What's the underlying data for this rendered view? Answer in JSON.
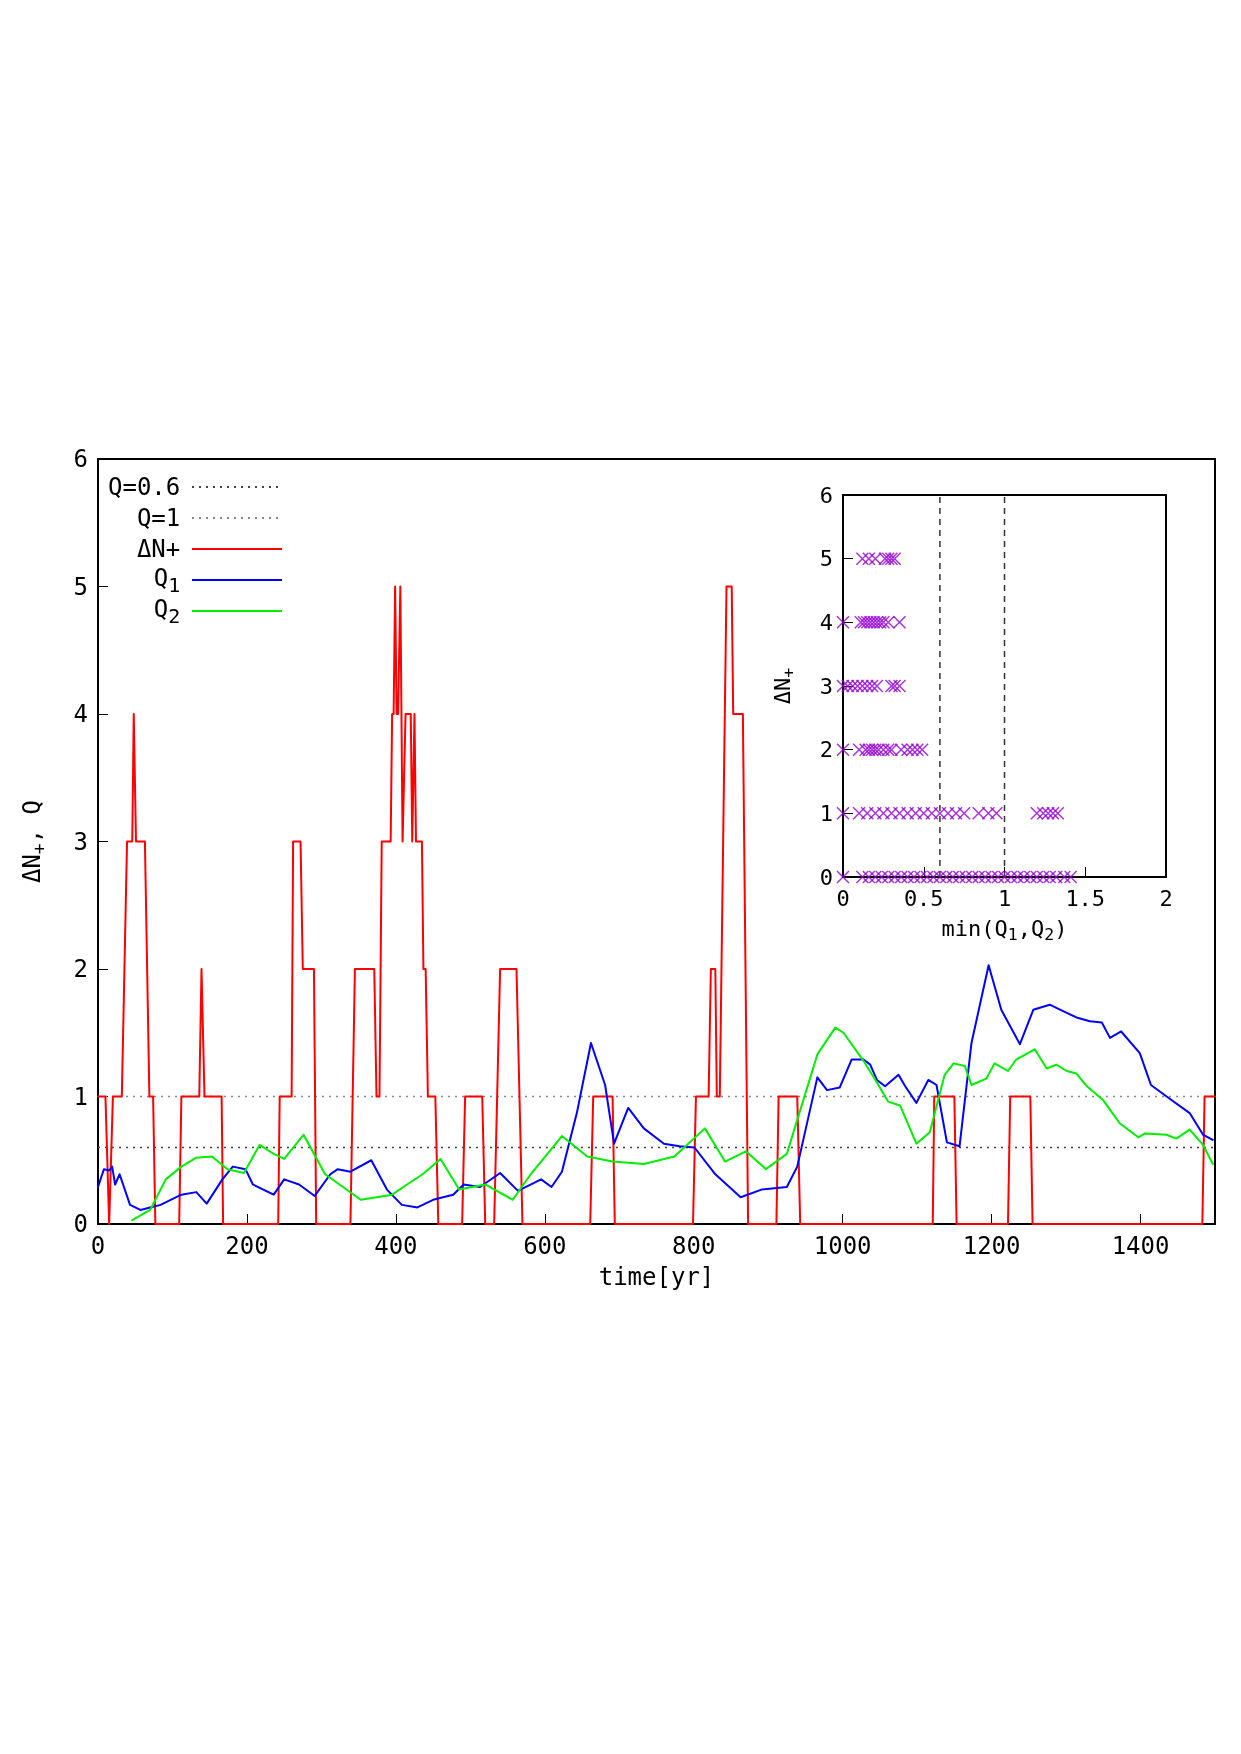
{
  "chart_data": [
    {
      "type": "line",
      "xlabel": "time[yr]",
      "ylabel": "ΔN$_{+}$, Q",
      "xlim": [
        0,
        1500
      ],
      "xticks": [
        0,
        200,
        400,
        600,
        800,
        1000,
        1200,
        1400
      ],
      "ylim": [
        0,
        6
      ],
      "yticks": [
        0,
        1,
        2,
        3,
        4,
        5,
        6
      ],
      "legend": "top left",
      "ref_lines": [
        {
          "axis": "y",
          "value": 0.6,
          "label": "Q=0.6",
          "color": "#444444",
          "line_style": "dotted"
        },
        {
          "axis": "y",
          "value": 1,
          "label": "Q=1",
          "color": "#888888",
          "line_style": "dotted"
        }
      ],
      "series": [
        {
          "name": "ΔN+",
          "color": "#ff0000",
          "x": [
            0,
            10,
            15,
            20,
            32,
            39,
            46,
            48,
            51,
            63,
            69,
            74,
            77,
            109,
            112,
            136,
            139,
            143,
            166,
            168,
            242,
            244,
            260,
            262,
            272,
            275,
            290,
            293,
            339,
            345,
            371,
            374,
            378,
            381,
            393,
            395,
            397,
            399,
            401,
            403,
            406,
            409,
            413,
            420,
            422,
            425,
            427,
            435,
            437,
            440,
            443,
            453,
            457,
            489,
            493,
            516,
            520,
            532,
            536,
            540,
            562,
            566,
            570,
            661,
            665,
            691,
            694,
            799,
            803,
            820,
            823,
            829,
            831,
            835,
            844,
            851,
            853,
            866,
            873,
            911,
            914,
            939,
            943,
            1121,
            1123,
            1150,
            1153,
            1222,
            1225,
            1252,
            1255,
            1483,
            1486,
            1500
          ],
          "values": [
            1,
            1,
            0,
            1,
            1,
            3,
            3,
            4,
            3,
            3,
            1,
            1,
            0,
            0,
            1,
            1,
            2,
            1,
            1,
            0,
            0,
            1,
            1,
            3,
            3,
            2,
            2,
            0,
            0,
            2,
            2,
            1,
            1,
            3,
            3,
            4,
            4,
            5,
            4,
            4,
            5,
            3,
            4,
            4,
            3,
            4,
            3,
            3,
            2,
            2,
            1,
            1,
            0,
            0,
            1,
            1,
            0,
            0,
            1,
            2,
            2,
            1,
            0,
            0,
            1,
            1,
            0,
            0,
            1,
            1,
            2,
            2,
            1,
            1,
            5,
            5,
            4,
            4,
            0,
            0,
            1,
            1,
            0,
            0,
            1,
            1,
            0,
            0,
            1,
            1,
            0,
            0,
            1,
            1
          ]
        },
        {
          "name": "Q$_{1}$",
          "color": "#0000ff",
          "x": [
            0,
            8,
            15,
            19,
            23,
            29,
            43,
            57,
            70,
            84,
            112,
            132,
            146,
            167,
            181,
            198,
            208,
            236,
            250,
            270,
            291,
            312,
            322,
            339,
            367,
            388,
            408,
            429,
            450,
            477,
            491,
            513,
            540,
            564,
            595,
            609,
            623,
            643,
            662,
            681,
            693,
            712,
            733,
            760,
            781,
            801,
            829,
            863,
            891,
            925,
            939,
            966,
            979,
            996,
            1012,
            1028,
            1037,
            1046,
            1057,
            1075,
            1084,
            1099,
            1115,
            1126,
            1140,
            1157,
            1173,
            1196,
            1213,
            1238,
            1256,
            1278,
            1296,
            1314,
            1332,
            1348,
            1359,
            1374,
            1399,
            1414,
            1435,
            1466,
            1484,
            1497
          ],
          "values": [
            0.29,
            0.43,
            0.42,
            0.45,
            0.31,
            0.39,
            0.15,
            0.11,
            0.13,
            0.15,
            0.23,
            0.25,
            0.16,
            0.35,
            0.45,
            0.43,
            0.31,
            0.23,
            0.35,
            0.31,
            0.22,
            0.39,
            0.43,
            0.41,
            0.5,
            0.27,
            0.15,
            0.13,
            0.19,
            0.23,
            0.31,
            0.29,
            0.4,
            0.26,
            0.35,
            0.29,
            0.41,
            0.87,
            1.42,
            1.09,
            0.63,
            0.91,
            0.75,
            0.63,
            0.61,
            0.6,
            0.39,
            0.21,
            0.27,
            0.29,
            0.45,
            1.15,
            1.05,
            1.07,
            1.29,
            1.29,
            1.25,
            1.13,
            1.08,
            1.17,
            1.08,
            0.95,
            1.13,
            1.09,
            0.64,
            0.61,
            1.42,
            2.03,
            1.68,
            1.41,
            1.68,
            1.72,
            1.67,
            1.62,
            1.59,
            1.58,
            1.46,
            1.51,
            1.34,
            1.09,
            1,
            0.87,
            0.7,
            0.66
          ]
        },
        {
          "name": "Q$_{2}$",
          "color": "#00ee00",
          "x": [
            46,
            70,
            91,
            112,
            132,
            153,
            174,
            196,
            217,
            236,
            250,
            276,
            305,
            353,
            395,
            415,
            436,
            460,
            485,
            520,
            557,
            581,
            623,
            657,
            691,
            733,
            774,
            815,
            842,
            870,
            897,
            925,
            966,
            990,
            1001,
            1028,
            1046,
            1061,
            1077,
            1099,
            1117,
            1137,
            1149,
            1164,
            1173,
            1193,
            1204,
            1222,
            1233,
            1258,
            1274,
            1287,
            1301,
            1314,
            1328,
            1350,
            1372,
            1397,
            1406,
            1435,
            1448,
            1466,
            1484,
            1497
          ],
          "values": [
            0.03,
            0.11,
            0.35,
            0.45,
            0.52,
            0.53,
            0.43,
            0.4,
            0.62,
            0.55,
            0.51,
            0.7,
            0.39,
            0.19,
            0.23,
            0.31,
            0.39,
            0.51,
            0.27,
            0.31,
            0.19,
            0.39,
            0.69,
            0.53,
            0.49,
            0.47,
            0.53,
            0.75,
            0.49,
            0.57,
            0.43,
            0.55,
            1.33,
            1.54,
            1.5,
            1.28,
            1.11,
            0.96,
            0.93,
            0.63,
            0.72,
            1.17,
            1.26,
            1.24,
            1.09,
            1.14,
            1.26,
            1.2,
            1.29,
            1.37,
            1.22,
            1.25,
            1.2,
            1.18,
            1.08,
            0.97,
            0.79,
            0.68,
            0.71,
            0.7,
            0.67,
            0.74,
            0.62,
            0.47
          ]
        }
      ]
    },
    {
      "type": "scatter",
      "xlabel": "min(Q$_{1}$,Q$_{2}$)",
      "ylabel": "ΔN$_{+}$",
      "xlim": [
        0,
        2
      ],
      "xticks": [
        0,
        0.5,
        1,
        1.5,
        2
      ],
      "ylim": [
        0,
        6
      ],
      "yticks": [
        0,
        1,
        2,
        3,
        4,
        5,
        6
      ],
      "marker": "cross",
      "ref_lines": [
        {
          "axis": "x",
          "value": 0.6,
          "color": "#333333",
          "line_style": "dashed"
        },
        {
          "axis": "x",
          "value": 1,
          "color": "#333333",
          "line_style": "dashed"
        }
      ],
      "series": [
        {
          "color": "#9400d3",
          "x": [
            0,
            0.12,
            0.16,
            0.2,
            0.24,
            0.28,
            0.32,
            0.36,
            0.4,
            0.44,
            0.48,
            0.52,
            0.56,
            0.6,
            0.64,
            0.68,
            0.72,
            0.76,
            0.8,
            0.84,
            0.88,
            0.92,
            0.96,
            1,
            1.04,
            1.08,
            1.12,
            1.16,
            1.2,
            1.24,
            1.28,
            1.32,
            1.37,
            1.41,
            0,
            0.1,
            0.15,
            0.2,
            0.25,
            0.3,
            0.35,
            0.4,
            0.45,
            0.5,
            0.55,
            0.6,
            0.65,
            0.7,
            0.75,
            0.84,
            0.9,
            0.95,
            1.2,
            1.24,
            1.27,
            1.3,
            1.33,
            0,
            0.1,
            0.14,
            0.16,
            0.18,
            0.2,
            0.22,
            0.25,
            0.28,
            0.3,
            0.36,
            0.4,
            0.43,
            0.46,
            0.49,
            0,
            0.03,
            0.06,
            0.09,
            0.12,
            0.15,
            0.18,
            0.21,
            0.3,
            0.32,
            0.35,
            0,
            0.11,
            0.13,
            0.15,
            0.17,
            0.19,
            0.21,
            0.23,
            0.25,
            0.28,
            0.35,
            0.12,
            0.16,
            0.2,
            0.26,
            0.28,
            0.3,
            0.32
          ],
          "values": [
            0,
            0,
            0,
            0,
            0,
            0,
            0,
            0,
            0,
            0,
            0,
            0,
            0,
            0,
            0,
            0,
            0,
            0,
            0,
            0,
            0,
            0,
            0,
            0,
            0,
            0,
            0,
            0,
            0,
            0,
            0,
            0,
            0,
            0,
            1,
            1,
            1,
            1,
            1,
            1,
            1,
            1,
            1,
            1,
            1,
            1,
            1,
            1,
            1,
            1,
            1,
            1,
            1,
            1,
            1,
            1,
            1,
            2,
            2,
            2,
            2,
            2,
            2,
            2,
            2,
            2,
            2,
            2,
            2,
            2,
            2,
            2,
            3,
            3,
            3,
            3,
            3,
            3,
            3,
            3,
            3,
            3,
            3,
            4,
            4,
            4,
            4,
            4,
            4,
            4,
            4,
            4,
            4,
            4,
            5,
            5,
            5,
            5,
            5,
            5,
            5
          ]
        }
      ]
    }
  ]
}
